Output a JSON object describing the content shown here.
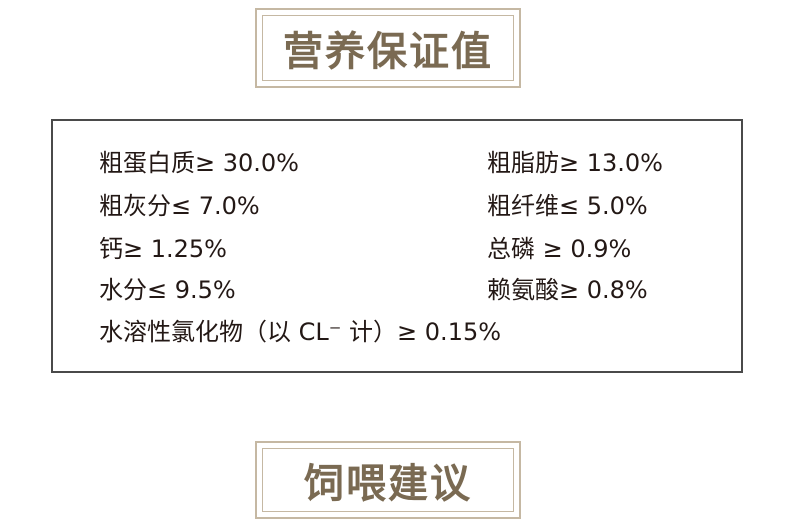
{
  "top_title": "营养保证值",
  "nutrients": {
    "col1": [
      "粗蛋白质≥ 30.0%",
      "粗灰分≤ 7.0%",
      "钙≥ 1.25%",
      "水分≤ 9.5%"
    ],
    "col2": [
      "粗脂肪≥ 13.0%",
      "粗纤维≤ 5.0%",
      "总磷 ≥ 0.9%",
      "赖氨酸≥ 0.8%"
    ],
    "chloride": "水溶性氯化物（以 CL⁻ 计）≥ 0.15%"
  },
  "bottom_title": "饲喂建议",
  "colors": {
    "title_text": "#7a6a52",
    "frame": "#c5b8a3",
    "box_border": "#4a4a4a"
  }
}
